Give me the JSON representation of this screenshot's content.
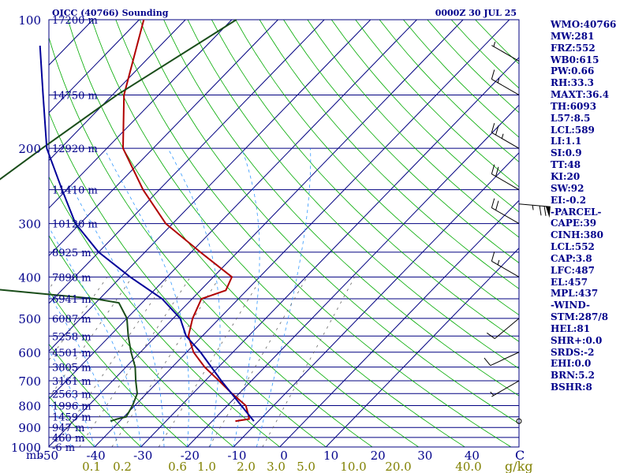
{
  "chart_data": {
    "type": "skew-t sounding",
    "title": "OICC (40766) Sounding",
    "datetime": "0000Z 30 JUL 25",
    "ylabel": "mb",
    "xunit": "C",
    "mixing_unit": "g/kg",
    "pressure_ticks": [
      100,
      200,
      300,
      400,
      500,
      600,
      700,
      800,
      900,
      1000
    ],
    "temp_ticks": [
      -50,
      -40,
      -30,
      -20,
      -10,
      0,
      10,
      20,
      30,
      40
    ],
    "mixing_ticks": [
      "0.1",
      "0.2",
      "0.6",
      "1.0",
      "2.0",
      "3.0",
      "5.0",
      "10.0",
      "20.0",
      "40.0"
    ],
    "height_labels": [
      {
        "p": 100,
        "label": "17200 m"
      },
      {
        "p": 150,
        "label": "14750 m"
      },
      {
        "p": 200,
        "label": "12920 m"
      },
      {
        "p": 250,
        "label": "11410 m"
      },
      {
        "p": 300,
        "label": "10120 m"
      },
      {
        "p": 350,
        "label": "8925 m"
      },
      {
        "p": 400,
        "label": "7890 m"
      },
      {
        "p": 450,
        "label": "6941 m"
      },
      {
        "p": 500,
        "label": "6087 m"
      },
      {
        "p": 550,
        "label": "5258 m"
      },
      {
        "p": 600,
        "label": "4501 m"
      },
      {
        "p": 650,
        "label": "3805 m"
      },
      {
        "p": 700,
        "label": "3161 m"
      },
      {
        "p": 750,
        "label": "2563 m"
      },
      {
        "p": 800,
        "label": "1996 m"
      },
      {
        "p": 850,
        "label": "1459 m"
      },
      {
        "p": 900,
        "label": "947 m"
      },
      {
        "p": 950,
        "label": "460 m"
      },
      {
        "p": 1000,
        "label": "-6 m"
      }
    ],
    "series": [
      {
        "name": "temperature",
        "color": "#b00000",
        "points": [
          [
            100,
            -79
          ],
          [
            150,
            -67.5
          ],
          [
            200,
            -56.5
          ],
          [
            250,
            -43.5
          ],
          [
            300,
            -31.5
          ],
          [
            350,
            -18
          ],
          [
            400,
            -6
          ],
          [
            430,
            -4.5
          ],
          [
            450,
            -8
          ],
          [
            500,
            -5.8
          ],
          [
            550,
            -3
          ],
          [
            600,
            1.5
          ],
          [
            650,
            7
          ],
          [
            700,
            13
          ],
          [
            750,
            18.5
          ],
          [
            800,
            24
          ],
          [
            850,
            27
          ],
          [
            860,
            27.5
          ],
          [
            870,
            25
          ]
        ]
      },
      {
        "name": "dewpoint",
        "color": "#1a4d1a",
        "points": [
          [
            100,
            -59
          ],
          [
            150,
            -69
          ],
          [
            200,
            -74
          ],
          [
            250,
            -77.5
          ],
          [
            300,
            -81
          ],
          [
            350,
            -83
          ],
          [
            400,
            -83
          ],
          [
            430,
            -52
          ],
          [
            450,
            -31
          ],
          [
            460,
            -25
          ],
          [
            500,
            -20
          ],
          [
            550,
            -16
          ],
          [
            600,
            -12
          ],
          [
            650,
            -8
          ],
          [
            700,
            -5
          ],
          [
            750,
            -2
          ],
          [
            800,
            -0.5
          ],
          [
            850,
            0.5
          ],
          [
            860,
            -1
          ],
          [
            870,
            -2
          ]
        ]
      },
      {
        "name": "parcel",
        "color": "#000099",
        "points": [
          [
            115,
            -96
          ],
          [
            150,
            -85
          ],
          [
            200,
            -73
          ],
          [
            250,
            -61
          ],
          [
            300,
            -51
          ],
          [
            350,
            -40
          ],
          [
            400,
            -28
          ],
          [
            450,
            -16.5
          ],
          [
            500,
            -8.5
          ],
          [
            550,
            -3.5
          ],
          [
            600,
            3
          ],
          [
            700,
            13.5
          ],
          [
            800,
            23
          ],
          [
            870,
            29
          ]
        ]
      }
    ],
    "wind_barbs": [
      {
        "p": 125,
        "dir": 300,
        "spd": 5
      },
      {
        "p": 150,
        "dir": 300,
        "spd": 15
      },
      {
        "p": 200,
        "dir": 300,
        "spd": 25
      },
      {
        "p": 250,
        "dir": 300,
        "spd": 20
      },
      {
        "p": 270,
        "dir": 95,
        "spd": 75
      },
      {
        "p": 300,
        "dir": 300,
        "spd": 20
      },
      {
        "p": 400,
        "dir": 300,
        "spd": 15
      },
      {
        "p": 500,
        "dir": 230,
        "spd": 10
      },
      {
        "p": 600,
        "dir": 245,
        "spd": 10
      },
      {
        "p": 700,
        "dir": 240,
        "spd": 5
      }
    ],
    "indices": [
      "WMO:40766",
      "MW:281",
      "FRZ:552",
      "WB0:615",
      "PW:0.66",
      "RH:33.3",
      "MAXT:36.4",
      "TH:6093",
      "L57:8.5",
      "LCL:589",
      "LI:1.1",
      "SI:0.9",
      "TT:48",
      "KI:20",
      "SW:92",
      "EI:-0.2",
      "-PARCEL-",
      "CAPE:39",
      "CINH:380",
      "LCL:552",
      "CAP:3.8",
      "LFC:487",
      "EL:457",
      "MPL:437",
      "-WIND-",
      "STM:287/8",
      "HEL:81",
      "SHR+:0.0",
      "SRDS:-2",
      "EHI:0.0",
      "BRN:5.2",
      "BSHR:8"
    ],
    "colors": {
      "isobar": "#000080",
      "isotherm": "#000080",
      "dry_adiabat": "#00aa00",
      "moist_adiabat": "#3399ff",
      "mixing": "#666666",
      "text": "#00008b",
      "mixing_text": "#808000"
    }
  }
}
